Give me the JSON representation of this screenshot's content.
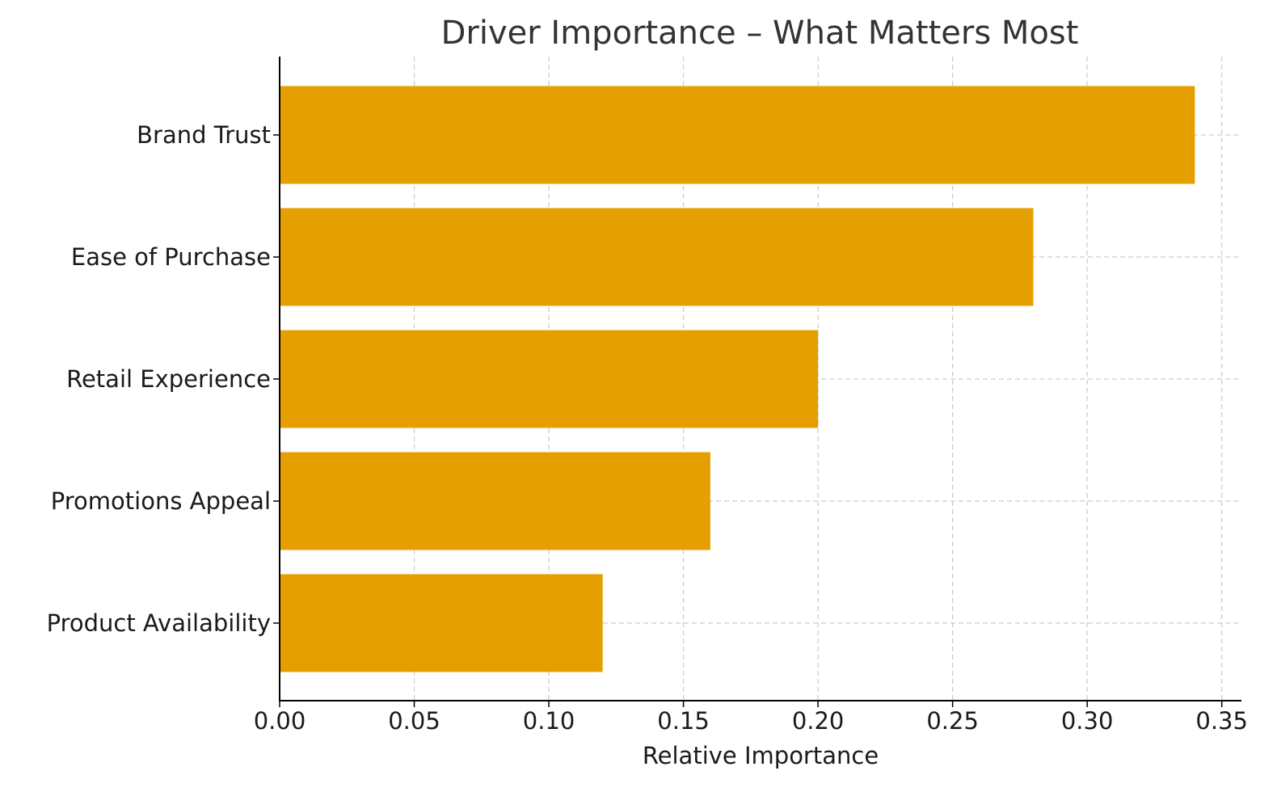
{
  "chart_data": {
    "type": "bar",
    "orientation": "horizontal",
    "title": "Driver Importance – What Matters Most",
    "xlabel": "Relative Importance",
    "ylabel": "",
    "categories": [
      "Brand Trust",
      "Ease of Purchase",
      "Retail Experience",
      "Promotions Appeal",
      "Product Availability"
    ],
    "values": [
      0.34,
      0.28,
      0.2,
      0.16,
      0.12
    ],
    "xlim": [
      0,
      0.357
    ],
    "xticks": [
      "0.00",
      "0.05",
      "0.10",
      "0.15",
      "0.20",
      "0.25",
      "0.30",
      "0.35"
    ],
    "grid": true,
    "bar_color": "#E69F00"
  }
}
